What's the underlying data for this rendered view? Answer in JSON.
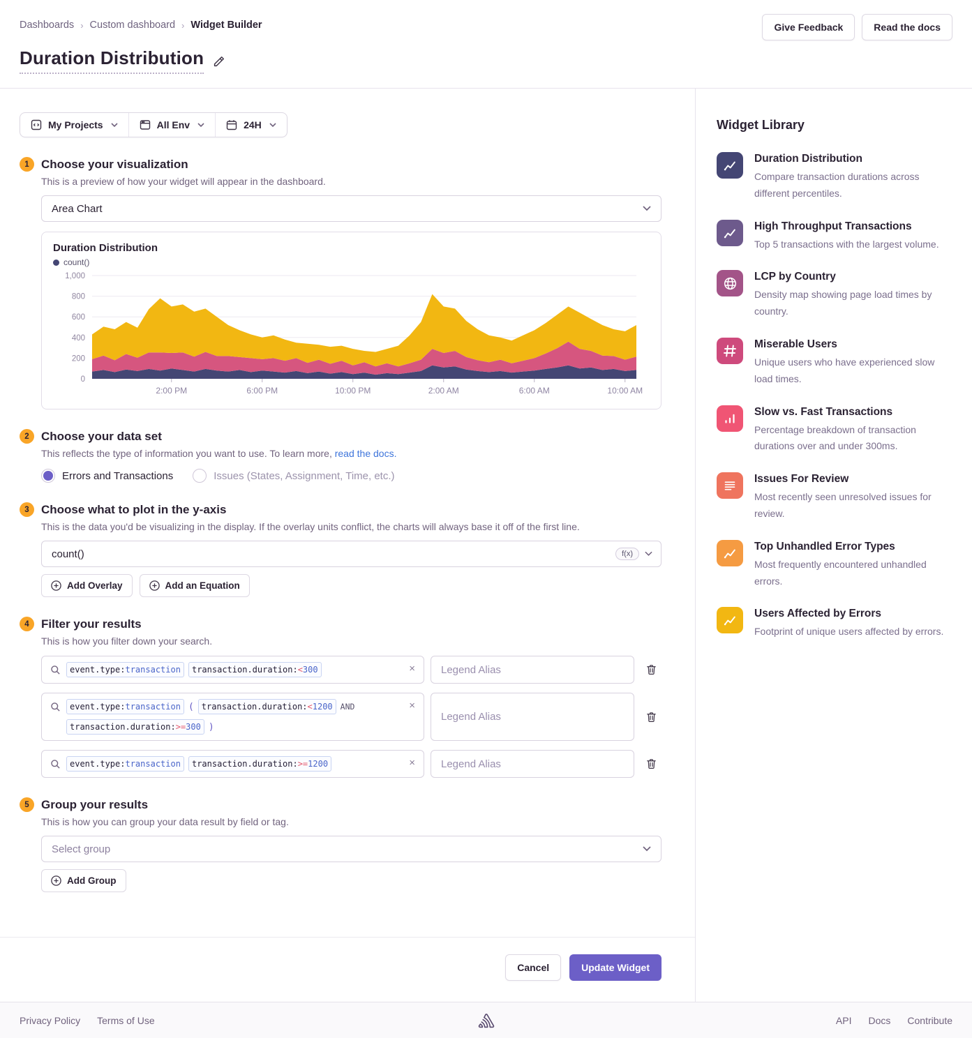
{
  "breadcrumb": {
    "items": [
      "Dashboards",
      "Custom dashboard",
      "Widget Builder"
    ]
  },
  "header_actions": {
    "feedback": "Give Feedback",
    "docs": "Read the docs"
  },
  "page": {
    "title": "Duration Distribution"
  },
  "filters": {
    "projects": "My Projects",
    "env": "All Env",
    "time": "24H"
  },
  "steps": {
    "visualization": {
      "number": "1",
      "title": "Choose your visualization",
      "subtitle": "This is a preview of how your widget will appear in the dashboard.",
      "select_value": "Area Chart"
    },
    "dataset": {
      "number": "2",
      "title": "Choose your data set",
      "subtitle_prefix": "This reflects the type of information you want to use. To learn more, ",
      "subtitle_link": "read the docs.",
      "options": [
        {
          "label": "Errors and Transactions",
          "selected": true
        },
        {
          "label": "Issues (States, Assignment, Time, etc.)",
          "selected": false
        }
      ]
    },
    "yaxis": {
      "number": "3",
      "title": "Choose what to plot in the y-axis",
      "subtitle": "This is the data you'd be visualizing in the display. If the overlay units conflict, the charts will always base it off of the first line.",
      "field_value": "count()",
      "fx_badge": "f(x)",
      "add_overlay": "Add Overlay",
      "add_equation": "Add an Equation"
    },
    "filter": {
      "number": "4",
      "title": "Filter your results",
      "subtitle": "This is how you filter down your search.",
      "legend_placeholder": "Legend Alias",
      "rows": [
        {
          "tokens": [
            {
              "type": "pair",
              "key": "event.type:",
              "op": "",
              "value": "transaction"
            },
            {
              "type": "pair",
              "key": "transaction.duration:",
              "op": "<",
              "value": "300"
            }
          ]
        },
        {
          "tokens": [
            {
              "type": "pair",
              "key": "event.type:",
              "op": "",
              "value": "transaction"
            },
            {
              "type": "paren",
              "text": "("
            },
            {
              "type": "pair",
              "key": "transaction.duration:",
              "op": "<",
              "value": "1200"
            },
            {
              "type": "bool",
              "text": "AND"
            },
            {
              "type": "pair",
              "key": "transaction.duration:",
              "op": ">=",
              "value": "300"
            },
            {
              "type": "paren",
              "text": ")"
            }
          ]
        },
        {
          "tokens": [
            {
              "type": "pair",
              "key": "event.type:",
              "op": "",
              "value": "transaction"
            },
            {
              "type": "pair",
              "key": "transaction.duration:",
              "op": ">=",
              "value": "1200"
            }
          ]
        }
      ]
    },
    "group": {
      "number": "5",
      "title": "Group your results",
      "subtitle": "This is how you can group your data result by field or tag.",
      "select_placeholder": "Select group",
      "add_group": "Add Group"
    }
  },
  "actions": {
    "cancel": "Cancel",
    "update": "Update Widget"
  },
  "widget_library": {
    "title": "Widget Library",
    "items": [
      {
        "title": "Duration Distribution",
        "description": "Compare transaction durations across different percentiles.",
        "color": "#444674",
        "icon": "chart-line",
        "dotted": false
      },
      {
        "title": "High Throughput Transactions",
        "description": "Top 5 transactions with the largest volume.",
        "color": "#6d5a8c",
        "icon": "chart-line",
        "dotted": true
      },
      {
        "title": "LCP by Country",
        "description": "Density map showing page load times by country.",
        "color": "#a35488",
        "icon": "globe",
        "dotted": false
      },
      {
        "title": "Miserable Users",
        "description": "Unique users who have experienced slow load times.",
        "color": "#ce4a7c",
        "icon": "hash",
        "dotted": false
      },
      {
        "title": "Slow vs. Fast Transactions",
        "description": "Percentage breakdown of transaction durations over and under 300ms.",
        "color": "#f05574",
        "icon": "bar-chart",
        "dotted": false
      },
      {
        "title": "Issues For Review",
        "description": "Most recently seen unresolved issues for review.",
        "color": "#ef745e",
        "icon": "list",
        "dotted": false
      },
      {
        "title": "Top Unhandled Error Types",
        "description": "Most frequently encountered unhandled errors.",
        "color": "#f59b42",
        "icon": "chart-line",
        "dotted": false
      },
      {
        "title": "Users Affected by Errors",
        "description": "Footprint of unique users affected by errors.",
        "color": "#f2b712",
        "icon": "chart-line",
        "dotted": false
      }
    ]
  },
  "footer": {
    "left": [
      "Privacy Policy",
      "Terms of Use"
    ],
    "right": [
      "API",
      "Docs",
      "Contribute"
    ]
  },
  "chart_data": {
    "type": "area",
    "stacked": true,
    "title": "Duration Distribution",
    "legend": [
      "count()"
    ],
    "hours_span": 24,
    "x_tick_labels": [
      "2:00 PM",
      "6:00 PM",
      "10:00 PM",
      "2:00 AM",
      "6:00 AM",
      "10:00 AM"
    ],
    "x_tick_hours": [
      3.5,
      7.5,
      11.5,
      15.5,
      19.5,
      23.5
    ],
    "ylim": [
      0,
      1000
    ],
    "y_ticks": [
      0,
      200,
      400,
      600,
      800,
      1000
    ],
    "grid": true,
    "legend_position": "top-left",
    "series": [
      {
        "name": "count() — filter 1",
        "color": "#444674",
        "values": [
          70,
          85,
          65,
          90,
          75,
          95,
          80,
          100,
          85,
          70,
          95,
          80,
          70,
          85,
          65,
          80,
          70,
          60,
          75,
          55,
          70,
          50,
          65,
          45,
          60,
          40,
          55,
          45,
          60,
          75,
          130,
          110,
          120,
          90,
          75,
          65,
          75,
          60,
          70,
          80,
          95,
          110,
          130,
          100,
          110,
          85,
          95,
          75,
          85
        ]
      },
      {
        "name": "count() — filter 2",
        "color": "#d6567f",
        "values": [
          120,
          140,
          115,
          150,
          130,
          160,
          175,
          150,
          170,
          145,
          165,
          140,
          150,
          125,
          135,
          110,
          130,
          115,
          125,
          100,
          115,
          95,
          110,
          85,
          100,
          80,
          95,
          75,
          90,
          110,
          160,
          140,
          150,
          120,
          105,
          95,
          110,
          90,
          105,
          120,
          150,
          185,
          230,
          190,
          160,
          140,
          125,
          110,
          130
        ]
      },
      {
        "name": "count() — filter 3",
        "color": "#f2b712",
        "values": [
          240,
          280,
          300,
          310,
          290,
          420,
          525,
          450,
          465,
          435,
          420,
          380,
          300,
          260,
          230,
          210,
          220,
          205,
          150,
          185,
          145,
          165,
          145,
          160,
          110,
          140,
          140,
          200,
          270,
          365,
          530,
          450,
          410,
          350,
          300,
          260,
          215,
          220,
          245,
          270,
          295,
          325,
          340,
          350,
          310,
          295,
          260,
          275,
          305
        ]
      }
    ]
  }
}
